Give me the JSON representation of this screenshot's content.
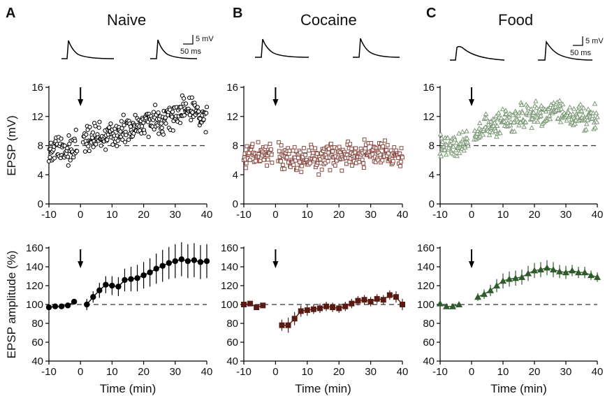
{
  "panels": [
    {
      "letter": "A",
      "title": "Naive"
    },
    {
      "letter": "B",
      "title": "Cocaine"
    },
    {
      "letter": "C",
      "title": "Food"
    }
  ],
  "scale_bar": {
    "voltage": "5 mV",
    "time": "50 ms"
  },
  "colors": {
    "naive": "#000000",
    "cocaine": "#5a1a14",
    "food": "#2f5a2c",
    "food_open": "#7d9a78",
    "cocaine_open": "#8a4a42"
  },
  "chart_data": [
    {
      "type": "scatter",
      "panel": "A",
      "row": "top",
      "xlabel": "",
      "ylabel": "EPSP (mV)",
      "xlim": [
        -10,
        40
      ],
      "ylim": [
        0,
        16
      ],
      "xticks": [
        -10,
        0,
        10,
        20,
        30,
        40
      ],
      "yticks": [
        0,
        4,
        8,
        12,
        16
      ],
      "marker": "open-circle",
      "baseline": 8,
      "arrow_at": 0,
      "trend": [
        [
          -10,
          7.3
        ],
        [
          -5,
          7.5
        ],
        [
          -1,
          7.8
        ],
        [
          1,
          8.7
        ],
        [
          5,
          9.1
        ],
        [
          10,
          9.6
        ],
        [
          15,
          10.1
        ],
        [
          20,
          10.9
        ],
        [
          25,
          11.6
        ],
        [
          30,
          12.3
        ],
        [
          35,
          13.0
        ],
        [
          40,
          12.0
        ]
      ],
      "spread": 1.6
    },
    {
      "type": "scatter",
      "panel": "B",
      "row": "top",
      "xlabel": "",
      "ylabel": "",
      "xlim": [
        -10,
        40
      ],
      "ylim": [
        0,
        16
      ],
      "xticks": [
        -10,
        0,
        10,
        20,
        30,
        40
      ],
      "yticks": [
        0,
        4,
        8,
        12,
        16
      ],
      "marker": "open-square",
      "baseline": 7,
      "arrow_at": 0,
      "trend": [
        [
          -10,
          7.2
        ],
        [
          -5,
          6.8
        ],
        [
          -1,
          6.8
        ],
        [
          1,
          7.0
        ],
        [
          5,
          6.1
        ],
        [
          10,
          6.2
        ],
        [
          15,
          6.5
        ],
        [
          20,
          6.7
        ],
        [
          25,
          6.9
        ],
        [
          30,
          7.0
        ],
        [
          35,
          6.8
        ],
        [
          40,
          6.5
        ]
      ],
      "spread": 1.4
    },
    {
      "type": "scatter",
      "panel": "C",
      "row": "top",
      "xlabel": "",
      "ylabel": "",
      "xlim": [
        -10,
        40
      ],
      "ylim": [
        0,
        16
      ],
      "xticks": [
        -10,
        0,
        10,
        20,
        30,
        40
      ],
      "yticks": [
        0,
        4,
        8,
        12,
        16
      ],
      "marker": "open-triangle",
      "baseline": 8,
      "arrow_at": 0,
      "trend": [
        [
          -10,
          8.0
        ],
        [
          -5,
          8.0
        ],
        [
          -1,
          8.1
        ],
        [
          1,
          9.3
        ],
        [
          5,
          10.4
        ],
        [
          10,
          11.2
        ],
        [
          15,
          11.8
        ],
        [
          20,
          12.2
        ],
        [
          25,
          12.5
        ],
        [
          30,
          12.3
        ],
        [
          35,
          12.0
        ],
        [
          40,
          11.6
        ]
      ],
      "spread": 1.4
    },
    {
      "type": "line",
      "panel": "A",
      "row": "bottom",
      "xlabel": "Time (min)",
      "ylabel": "EPSP amplitude (%)",
      "xlim": [
        -10,
        40
      ],
      "ylim": [
        40,
        160
      ],
      "xticks": [
        -10,
        0,
        10,
        20,
        30,
        40
      ],
      "yticks": [
        40,
        60,
        80,
        100,
        120,
        140,
        160
      ],
      "marker": "filled-circle",
      "baseline": 100,
      "arrow_at": 0,
      "points": [
        {
          "x": -10,
          "y": 97,
          "err": 2
        },
        {
          "x": -8,
          "y": 98,
          "err": 2
        },
        {
          "x": -6,
          "y": 98,
          "err": 2
        },
        {
          "x": -4,
          "y": 99,
          "err": 2
        },
        {
          "x": -2,
          "y": 103,
          "err": 3
        },
        {
          "x": 2,
          "y": 100,
          "err": 6
        },
        {
          "x": 4,
          "y": 108,
          "err": 6
        },
        {
          "x": 6,
          "y": 115,
          "err": 8
        },
        {
          "x": 8,
          "y": 121,
          "err": 9
        },
        {
          "x": 10,
          "y": 120,
          "err": 10
        },
        {
          "x": 12,
          "y": 119,
          "err": 10
        },
        {
          "x": 14,
          "y": 126,
          "err": 12
        },
        {
          "x": 16,
          "y": 127,
          "err": 13
        },
        {
          "x": 18,
          "y": 128,
          "err": 14
        },
        {
          "x": 20,
          "y": 131,
          "err": 14
        },
        {
          "x": 22,
          "y": 134,
          "err": 15
        },
        {
          "x": 24,
          "y": 138,
          "err": 16
        },
        {
          "x": 26,
          "y": 141,
          "err": 17
        },
        {
          "x": 28,
          "y": 144,
          "err": 17
        },
        {
          "x": 30,
          "y": 146,
          "err": 18
        },
        {
          "x": 32,
          "y": 148,
          "err": 18
        },
        {
          "x": 34,
          "y": 146,
          "err": 18
        },
        {
          "x": 36,
          "y": 147,
          "err": 18
        },
        {
          "x": 38,
          "y": 145,
          "err": 18
        },
        {
          "x": 40,
          "y": 146,
          "err": 18
        }
      ]
    },
    {
      "type": "line",
      "panel": "B",
      "row": "bottom",
      "xlabel": "Time (min)",
      "ylabel": "",
      "xlim": [
        -10,
        40
      ],
      "ylim": [
        40,
        160
      ],
      "xticks": [
        -10,
        0,
        10,
        20,
        30,
        40
      ],
      "yticks": [
        40,
        60,
        80,
        100,
        120,
        140,
        160
      ],
      "marker": "filled-square",
      "baseline": 100,
      "arrow_at": 0,
      "points": [
        {
          "x": -10,
          "y": 100,
          "err": 2
        },
        {
          "x": -8,
          "y": 101,
          "err": 2
        },
        {
          "x": -6,
          "y": 97,
          "err": 2
        },
        {
          "x": -4,
          "y": 99,
          "err": 2
        },
        {
          "x": 2,
          "y": 78,
          "err": 6
        },
        {
          "x": 4,
          "y": 78,
          "err": 8
        },
        {
          "x": 6,
          "y": 85,
          "err": 7
        },
        {
          "x": 8,
          "y": 93,
          "err": 6
        },
        {
          "x": 10,
          "y": 94,
          "err": 6
        },
        {
          "x": 12,
          "y": 95,
          "err": 5
        },
        {
          "x": 14,
          "y": 96,
          "err": 5
        },
        {
          "x": 16,
          "y": 98,
          "err": 5
        },
        {
          "x": 18,
          "y": 97,
          "err": 5
        },
        {
          "x": 20,
          "y": 96,
          "err": 5
        },
        {
          "x": 22,
          "y": 98,
          "err": 5
        },
        {
          "x": 24,
          "y": 101,
          "err": 5
        },
        {
          "x": 26,
          "y": 104,
          "err": 5
        },
        {
          "x": 28,
          "y": 105,
          "err": 5
        },
        {
          "x": 30,
          "y": 103,
          "err": 5
        },
        {
          "x": 32,
          "y": 106,
          "err": 5
        },
        {
          "x": 34,
          "y": 105,
          "err": 5
        },
        {
          "x": 36,
          "y": 110,
          "err": 5
        },
        {
          "x": 38,
          "y": 108,
          "err": 6
        },
        {
          "x": 40,
          "y": 100,
          "err": 6
        }
      ]
    },
    {
      "type": "line",
      "panel": "C",
      "row": "bottom",
      "xlabel": "Time (min)",
      "ylabel": "",
      "xlim": [
        -10,
        40
      ],
      "ylim": [
        40,
        160
      ],
      "xticks": [
        -10,
        0,
        10,
        20,
        30,
        40
      ],
      "yticks": [
        40,
        60,
        80,
        100,
        120,
        140,
        160
      ],
      "marker": "filled-triangle",
      "baseline": 100,
      "arrow_at": 0,
      "points": [
        {
          "x": -10,
          "y": 101,
          "err": 2
        },
        {
          "x": -8,
          "y": 98,
          "err": 2
        },
        {
          "x": -6,
          "y": 98,
          "err": 2
        },
        {
          "x": -4,
          "y": 100,
          "err": 2
        },
        {
          "x": 2,
          "y": 108,
          "err": 4
        },
        {
          "x": 4,
          "y": 111,
          "err": 5
        },
        {
          "x": 6,
          "y": 115,
          "err": 6
        },
        {
          "x": 8,
          "y": 120,
          "err": 7
        },
        {
          "x": 10,
          "y": 125,
          "err": 8
        },
        {
          "x": 12,
          "y": 127,
          "err": 8
        },
        {
          "x": 14,
          "y": 128,
          "err": 8
        },
        {
          "x": 16,
          "y": 129,
          "err": 8
        },
        {
          "x": 18,
          "y": 133,
          "err": 8
        },
        {
          "x": 20,
          "y": 136,
          "err": 8
        },
        {
          "x": 22,
          "y": 137,
          "err": 8
        },
        {
          "x": 24,
          "y": 139,
          "err": 8
        },
        {
          "x": 26,
          "y": 137,
          "err": 8
        },
        {
          "x": 28,
          "y": 135,
          "err": 7
        },
        {
          "x": 30,
          "y": 134,
          "err": 7
        },
        {
          "x": 32,
          "y": 136,
          "err": 6
        },
        {
          "x": 34,
          "y": 134,
          "err": 6
        },
        {
          "x": 36,
          "y": 134,
          "err": 6
        },
        {
          "x": 38,
          "y": 131,
          "err": 5
        },
        {
          "x": 40,
          "y": 129,
          "err": 5
        }
      ]
    }
  ]
}
